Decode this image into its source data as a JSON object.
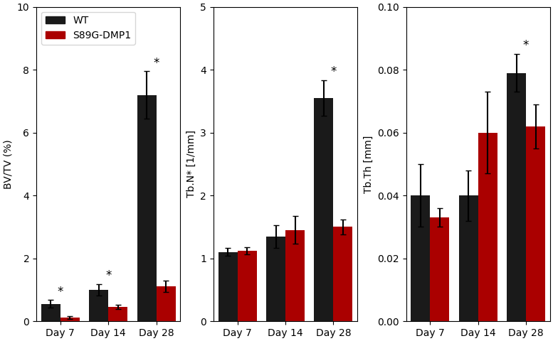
{
  "chart_data": [
    {
      "type": "bar",
      "ylabel": "BV/TV (%)",
      "categories": [
        "Day 7",
        "Day 14",
        "Day 28"
      ],
      "series": [
        {
          "name": "WT",
          "color": "#1a1a1a",
          "values": [
            0.55,
            1.0,
            7.2
          ],
          "errors": [
            0.12,
            0.18,
            0.75
          ]
        },
        {
          "name": "S89G-DMP1",
          "color": "#aa0000",
          "values": [
            0.12,
            0.45,
            1.1
          ],
          "errors": [
            0.04,
            0.07,
            0.18
          ]
        }
      ],
      "ylim": [
        0,
        10
      ],
      "yticks": [
        0,
        2,
        4,
        6,
        8,
        10
      ],
      "legend": "upper left",
      "annotations": [
        {
          "text": "*",
          "category": "Day 7"
        },
        {
          "text": "*",
          "category": "Day 14"
        },
        {
          "text": "*",
          "category": "Day 28"
        }
      ]
    },
    {
      "type": "bar",
      "ylabel": "Tb.N* [1/mm]",
      "categories": [
        "Day 7",
        "Day 14",
        "Day 28"
      ],
      "series": [
        {
          "name": "WT",
          "color": "#1a1a1a",
          "values": [
            1.1,
            1.35,
            3.55
          ],
          "errors": [
            0.06,
            0.18,
            0.28
          ]
        },
        {
          "name": "S89G-DMP1",
          "color": "#aa0000",
          "values": [
            1.12,
            1.45,
            1.5
          ],
          "errors": [
            0.06,
            0.22,
            0.12
          ]
        }
      ],
      "ylim": [
        0,
        5
      ],
      "yticks": [
        0,
        1,
        2,
        3,
        4,
        5
      ],
      "annotations": [
        {
          "text": "*",
          "category": "Day 28"
        }
      ]
    },
    {
      "type": "bar",
      "ylabel": "Tb.Th [mm]",
      "categories": [
        "Day 7",
        "Day 14",
        "Day 28"
      ],
      "series": [
        {
          "name": "WT",
          "color": "#1a1a1a",
          "values": [
            0.04,
            0.04,
            0.079
          ],
          "errors": [
            0.01,
            0.008,
            0.006
          ]
        },
        {
          "name": "S89G-DMP1",
          "color": "#aa0000",
          "values": [
            0.033,
            0.06,
            0.062
          ],
          "errors": [
            0.003,
            0.013,
            0.007
          ]
        }
      ],
      "ylim": [
        0,
        0.1
      ],
      "yticks": [
        {
          "value": 0.0,
          "label": "0.00"
        },
        {
          "value": 0.02,
          "label": "0.02"
        },
        {
          "value": 0.04,
          "label": "0.04"
        },
        {
          "value": 0.06,
          "label": "0.06"
        },
        {
          "value": 0.08,
          "label": "0.08"
        },
        {
          "value": 0.1,
          "label": "0.10"
        }
      ],
      "annotations": [
        {
          "text": "*",
          "category": "Day 28"
        }
      ]
    }
  ]
}
